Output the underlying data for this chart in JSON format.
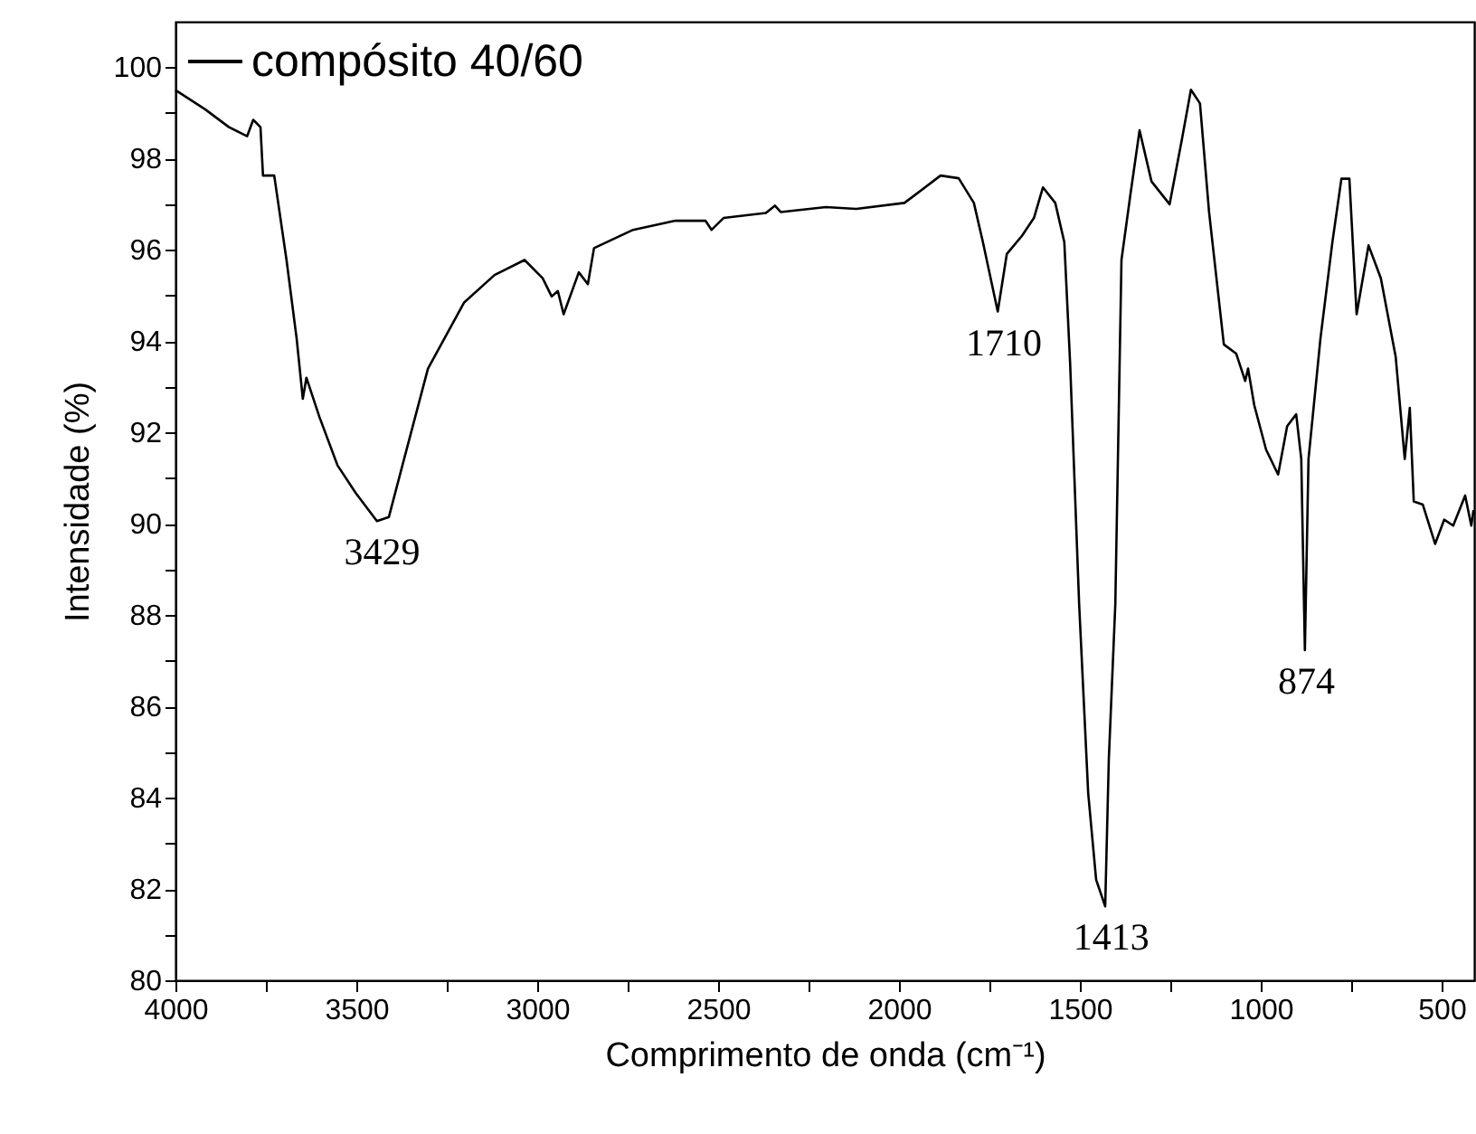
{
  "chart_data": {
    "type": "line",
    "xlabel": "Comprimento de onda (cm⁻¹)",
    "ylabel": "Intensidade (%)",
    "xlim": [
      4000,
      410
    ],
    "ylim": [
      80,
      101
    ],
    "xticks": [
      4000,
      {
        "value": 3750,
        "label": null
      },
      3500,
      {
        "value": 3250,
        "label": null
      },
      3000,
      {
        "value": 2750,
        "label": null
      },
      2500,
      {
        "value": 2250,
        "label": null
      },
      2000,
      {
        "value": 1750,
        "label": null
      },
      1500,
      {
        "value": 1250,
        "label": null
      },
      1000,
      {
        "value": 750,
        "label": null
      },
      500
    ],
    "yticks": [
      80,
      {
        "value": 81,
        "label": null
      },
      82,
      {
        "value": 83,
        "label": null
      },
      84,
      {
        "value": 85,
        "label": null
      },
      86,
      {
        "value": 87,
        "label": null
      },
      88,
      {
        "value": 89,
        "label": null
      },
      90,
      {
        "value": 91,
        "label": null
      },
      92,
      {
        "value": 93,
        "label": null
      },
      94,
      {
        "value": 95,
        "label": null
      },
      96,
      {
        "value": 97,
        "label": null
      },
      98,
      {
        "value": 99,
        "label": null
      },
      100
    ],
    "grid": false,
    "legend": "top left",
    "marker": "none",
    "line_style": "solid",
    "series": [
      {
        "name": "compósito 40/60",
        "color": "#000000",
        "x": [
          4000,
          3918,
          3852,
          3802,
          3785,
          3765,
          3758,
          3727,
          3693,
          3665,
          3648,
          3638,
          3602,
          3552,
          3502,
          3443,
          3410,
          3368,
          3302,
          3202,
          3118,
          3035,
          2985,
          2960,
          2943,
          2927,
          2885,
          2860,
          2843,
          2735,
          2618,
          2535,
          2518,
          2485,
          2368,
          2343,
          2327,
          2202,
          2118,
          1985,
          1885,
          1835,
          1793,
          1768,
          1727,
          1702,
          1660,
          1627,
          1602,
          1568,
          1543,
          1527,
          1502,
          1477,
          1455,
          1430,
          1420,
          1402,
          1385,
          1360,
          1335,
          1302,
          1252,
          1218,
          1193,
          1168,
          1143,
          1102,
          1068,
          1043,
          1035,
          1018,
          985,
          952,
          927,
          902,
          888,
          878,
          868,
          835,
          802,
          777,
          755,
          735,
          702,
          668,
          627,
          602,
          588,
          577,
          552,
          518,
          493,
          468,
          435,
          418,
          412
        ],
        "values": [
          99.5,
          99.08,
          98.69,
          98.49,
          98.85,
          98.69,
          97.63,
          97.63,
          95.78,
          94.06,
          92.74,
          93.2,
          92.34,
          91.28,
          90.68,
          90.06,
          90.15,
          91.42,
          93.4,
          94.85,
          95.45,
          95.78,
          95.38,
          94.98,
          95.1,
          94.59,
          95.51,
          95.25,
          96.04,
          96.44,
          96.64,
          96.64,
          96.44,
          96.7,
          96.81,
          96.97,
          96.83,
          96.94,
          96.9,
          97.03,
          97.63,
          97.57,
          97.03,
          96.17,
          94.65,
          95.91,
          96.31,
          96.7,
          97.37,
          97.03,
          96.17,
          93.53,
          88.24,
          84.1,
          82.2,
          81.62,
          84.84,
          88.24,
          95.78,
          97.23,
          98.62,
          97.5,
          97.0,
          98.42,
          99.51,
          99.21,
          96.84,
          93.93,
          93.73,
          93.13,
          93.4,
          92.6,
          91.62,
          91.08,
          92.14,
          92.4,
          91.42,
          87.23,
          91.42,
          94.06,
          96.17,
          97.56,
          97.56,
          94.59,
          96.1,
          95.38,
          93.66,
          91.42,
          92.54,
          90.49,
          90.42,
          89.56,
          90.09,
          89.96,
          90.62,
          89.96,
          90.3
        ]
      }
    ],
    "annotations": [
      {
        "text": "3429",
        "x": 3429,
        "y": 90.06
      },
      {
        "text": "1710",
        "x": 1710,
        "y": 94.65
      },
      {
        "text": "1413",
        "x": 1413,
        "y": 81.62
      },
      {
        "text": "874",
        "x": 874,
        "y": 87.23
      }
    ]
  }
}
